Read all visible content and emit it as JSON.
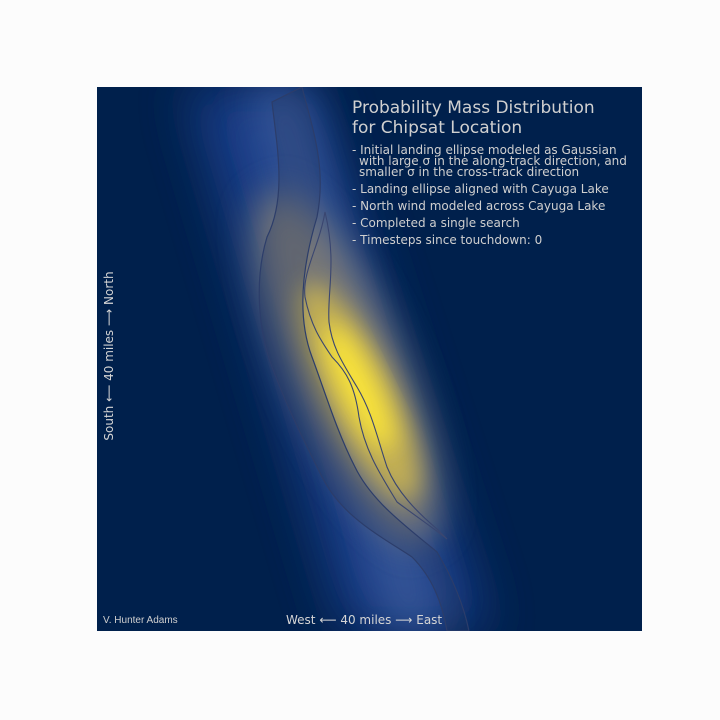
{
  "chart_data": {
    "type": "heatmap",
    "title_lines": [
      "Probability Mass Distribution",
      "for Chipsat Location"
    ],
    "notes": [
      [
        "- Initial landing ellipse modeled as Gaussian",
        "with large σ in the along-track direction, and",
        "smaller σ in the cross-track direction"
      ],
      [
        "- Landing ellipse aligned with Cayuga Lake"
      ],
      [
        "- North wind modeled across Cayuga Lake"
      ],
      [
        "- Completed a single search"
      ],
      [
        "- Timesteps since touchdown: 0"
      ]
    ],
    "xlabel": "West ⟵  40 miles ⟶  East",
    "ylabel": "South ⟵  40 miles ⟶  North",
    "credit": "V. Hunter Adams",
    "colormap": "cividis",
    "colors": {
      "low": "#00204c",
      "mid": "#7f7c75",
      "high": "#fee838",
      "page_background": "#fcfcfc",
      "text": "#d0d0d0"
    },
    "distribution": {
      "model": "Gaussian landing ellipse rotated along Cayuga Lake",
      "peak_relative_probability": 1.0
    },
    "timesteps_since_touchdown": 0,
    "searches_completed": 1
  }
}
